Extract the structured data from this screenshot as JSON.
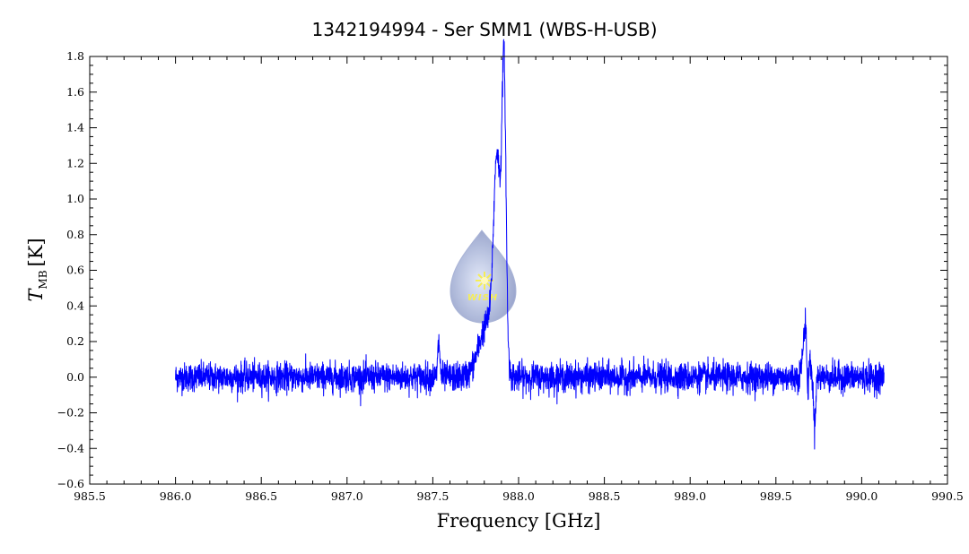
{
  "chart_data": {
    "type": "line",
    "title": "1342194994 - Ser SMM1 (WBS-H-USB)",
    "xlabel": "Frequency [GHz]",
    "ylabel_main": "T",
    "ylabel_sub": "MB",
    "ylabel_unit": "[K]",
    "xlim": [
      985.5,
      990.5
    ],
    "ylim": [
      -0.6,
      1.8
    ],
    "x_ticks": [
      985.5,
      986.0,
      986.5,
      987.0,
      987.5,
      988.0,
      988.5,
      989.0,
      989.5,
      990.0,
      990.5
    ],
    "x_tick_labels": [
      "985.5",
      "986.0",
      "986.5",
      "987.0",
      "987.5",
      "988.0",
      "988.5",
      "989.0",
      "989.5",
      "990.0",
      "990.5"
    ],
    "y_ticks": [
      -0.6,
      -0.4,
      -0.2,
      0.0,
      0.2,
      0.4,
      0.6,
      0.8,
      1.0,
      1.2,
      1.4,
      1.6,
      1.8
    ],
    "y_tick_labels": [
      "−0.6",
      "−0.4",
      "−0.2",
      "0.0",
      "0.2",
      "0.4",
      "0.6",
      "0.8",
      "1.0",
      "1.2",
      "1.4",
      "1.6",
      "1.8"
    ],
    "grid": false,
    "series": [
      {
        "color": "#0000ff",
        "x_range": [
          986.0,
          990.13
        ],
        "baseline": 0.0,
        "noise_rms": 0.04,
        "features": [
          {
            "center": 987.535,
            "peak": 0.2,
            "width": 0.006
          },
          {
            "center": 987.875,
            "peak": 1.1,
            "width": 0.02
          },
          {
            "center": 987.915,
            "peak": 1.63,
            "width": 0.012
          },
          {
            "center": 987.82,
            "peak": 0.3,
            "width": 0.05
          },
          {
            "center": 989.675,
            "peak": 0.32,
            "width": 0.015
          },
          {
            "center": 989.685,
            "peak": -0.34,
            "width": 0.005
          },
          {
            "center": 989.725,
            "peak": -0.27,
            "width": 0.006
          }
        ]
      }
    ]
  },
  "watermark": {
    "text": "WISH",
    "colors": {
      "drop": "#a8b4d8",
      "star": "#f4ea3a"
    }
  }
}
